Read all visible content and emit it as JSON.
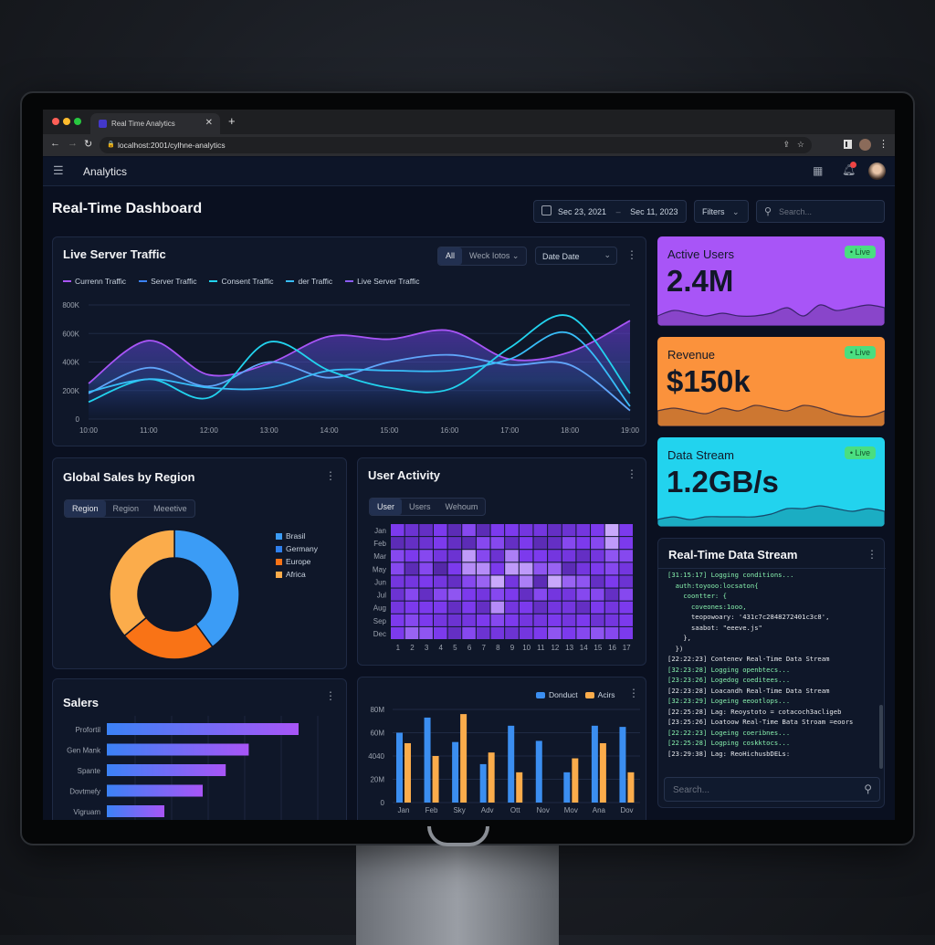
{
  "browser": {
    "tab_title": "Real Time Analytics",
    "url": "localhost:2001/cylhne-analytics"
  },
  "app": {
    "title": "Analytics",
    "notification_count": "1"
  },
  "page": {
    "title": "Real-Time Dashboard",
    "date_from": "Sec 23, 2021",
    "date_sep": "–",
    "date_to": "Sec 11, 2023",
    "filters_label": "Filters",
    "search_placeholder": "Search..."
  },
  "traffic": {
    "title": "Live Server Traffic",
    "seg_all": "All",
    "seg_week": "Weck Iotos",
    "date_select": "Date Date",
    "legend": [
      {
        "name": "Currenn Traffic",
        "color": "#a855f7"
      },
      {
        "name": "Server Traffic",
        "color": "#3b82f6"
      },
      {
        "name": "Consent Traffic",
        "color": "#22d3ee"
      },
      {
        "name": "der Traffic",
        "color": "#38bdf8"
      },
      {
        "name": "Live Server Traffic",
        "color": "#8b5cf6"
      }
    ]
  },
  "kpis": [
    {
      "label": "Active Users",
      "value": "2.4M",
      "badge": "Live",
      "color": "#a855f7",
      "spark": [
        3,
        5,
        4,
        3,
        4,
        3,
        3,
        4,
        6,
        3,
        7,
        5,
        6,
        7,
        6
      ]
    },
    {
      "label": "Revenue",
      "value": "$150k",
      "badge": "Live",
      "color": "#fb923c",
      "spark": [
        5,
        6,
        5,
        4,
        6,
        5,
        7,
        6,
        5,
        7,
        6,
        4,
        3,
        3,
        5
      ]
    },
    {
      "label": "Data Stream",
      "value": "1.2GB/s",
      "badge": "Live",
      "color": "#22d3ee",
      "spark": [
        2,
        3,
        2,
        3,
        3,
        3,
        3,
        4,
        6,
        6,
        7,
        6,
        5,
        6,
        5
      ]
    }
  ],
  "sales_region": {
    "title": "Global Sales by Region",
    "tabs": [
      "Region",
      "Region",
      "Meeetive"
    ]
  },
  "user_activity": {
    "title": "User Activity",
    "tabs": [
      "User",
      "Users",
      "Wehoum"
    ]
  },
  "stream": {
    "title": "Real-Time Data Stream",
    "search_placeholder": "Search...",
    "lines": [
      {
        "t": "[31:15:17] Logging conditions...",
        "c": "g"
      },
      {
        "t": "  auth:toyooo:locsaton{",
        "c": "g"
      },
      {
        "t": "    coontter: {",
        "c": "g"
      },
      {
        "t": "      coveones:1ooo,",
        "c": "g"
      },
      {
        "t": "      teopowoary: '431c7c2848272401c3c8',",
        "c": "w"
      },
      {
        "t": "      saabot: \"eeeve.js\"",
        "c": "w"
      },
      {
        "t": "    },",
        "c": "w"
      },
      {
        "t": "  })",
        "c": "w"
      },
      {
        "t": "[22:22:23] Contenev Real-Time Data Stream",
        "c": "w"
      },
      {
        "t": "[32:23:28] Logging openbtecs...",
        "c": "g"
      },
      {
        "t": "[23:23:26] Logedog coeditees...",
        "c": "g"
      },
      {
        "t": "[22:23:28] Loacandh Real-Time Data Stream",
        "c": "w"
      },
      {
        "t": "[32:23:29] Logeing eeootlops...",
        "c": "g"
      },
      {
        "t": "[22:25:28] Lag: Reoystoto = cotacoch3acligeb",
        "c": "w"
      },
      {
        "t": "[23:25:26] Loatoow Real-Time Bata Stroam =eoors",
        "c": "w"
      },
      {
        "t": "[22:22:23] Logeing coeribnes...",
        "c": "g"
      },
      {
        "t": "[22:25:28] Logping coskktocs...",
        "c": "g"
      },
      {
        "t": "[23:29:38] Lag: ReoHichusbDELs:",
        "c": "w"
      }
    ]
  },
  "salers": {
    "title": "Salers"
  },
  "chart_data": [
    {
      "type": "line",
      "title": "Live Server Traffic",
      "x": [
        "10:00",
        "11:00",
        "12:00",
        "13:00",
        "14:00",
        "15:00",
        "16:00",
        "17:00",
        "18:00",
        "19:00"
      ],
      "yticks": [
        "0",
        "200K",
        "400K",
        "600K",
        "800K"
      ],
      "ylim": [
        0,
        800
      ],
      "grid": true,
      "legend": "top-left",
      "series": [
        {
          "name": "Currenn Traffic",
          "color": "#a855f7",
          "fill": true,
          "values": [
            250,
            550,
            310,
            390,
            580,
            560,
            620,
            420,
            470,
            690
          ]
        },
        {
          "name": "Server Traffic",
          "color": "#60a5fa",
          "values": [
            180,
            360,
            230,
            400,
            290,
            400,
            450,
            380,
            380,
            60
          ]
        },
        {
          "name": "Consent Traffic",
          "color": "#22d3ee",
          "values": [
            120,
            280,
            150,
            540,
            340,
            220,
            210,
            500,
            720,
            180
          ]
        },
        {
          "name": "der Traffic",
          "color": "#38bdf8",
          "values": [
            190,
            280,
            220,
            220,
            340,
            340,
            340,
            420,
            600,
            90
          ]
        }
      ]
    },
    {
      "type": "pie",
      "title": "Global Sales by Region",
      "legend": "right",
      "labels": [
        "Brasil",
        "Germany",
        "Europe",
        "Africa"
      ],
      "values": [
        40,
        0,
        24,
        36
      ],
      "colors": [
        "#3b9cf6",
        "#2f80ed",
        "#f97316",
        "#fbac4b"
      ]
    },
    {
      "type": "heatmap",
      "title": "User Activity",
      "rows": [
        "Jan",
        "Feb",
        "Mar",
        "May",
        "Jun",
        "Jul",
        "Aug",
        "Sep",
        "Dec"
      ],
      "cols": [
        "1",
        "2",
        "3",
        "4",
        "5",
        "6",
        "7",
        "8",
        "9",
        "10",
        "11",
        "12",
        "13",
        "14",
        "15",
        "16",
        "17"
      ],
      "values": [
        [
          0.5,
          0.4,
          0.35,
          0.5,
          0.3,
          0.55,
          0.3,
          0.5,
          0.5,
          0.45,
          0.45,
          0.35,
          0.4,
          0.45,
          0.5,
          0.9,
          0.5
        ],
        [
          0.3,
          0.35,
          0.4,
          0.5,
          0.35,
          0.3,
          0.55,
          0.55,
          0.35,
          0.5,
          0.3,
          0.35,
          0.55,
          0.5,
          0.55,
          0.85,
          0.5
        ],
        [
          0.55,
          0.5,
          0.55,
          0.45,
          0.4,
          0.85,
          0.55,
          0.4,
          0.75,
          0.5,
          0.5,
          0.45,
          0.45,
          0.35,
          0.45,
          0.6,
          0.55
        ],
        [
          0.55,
          0.3,
          0.55,
          0.25,
          0.5,
          0.8,
          0.8,
          0.5,
          0.85,
          0.85,
          0.6,
          0.65,
          0.3,
          0.45,
          0.5,
          0.55,
          0.45
        ],
        [
          0.45,
          0.45,
          0.5,
          0.45,
          0.35,
          0.55,
          0.65,
          0.9,
          0.45,
          0.75,
          0.3,
          0.9,
          0.65,
          0.6,
          0.35,
          0.5,
          0.4
        ],
        [
          0.4,
          0.55,
          0.35,
          0.55,
          0.6,
          0.5,
          0.45,
          0.55,
          0.5,
          0.35,
          0.55,
          0.45,
          0.45,
          0.55,
          0.55,
          0.35,
          0.55
        ],
        [
          0.45,
          0.5,
          0.5,
          0.5,
          0.35,
          0.5,
          0.35,
          0.8,
          0.45,
          0.5,
          0.35,
          0.45,
          0.45,
          0.35,
          0.5,
          0.45,
          0.5
        ],
        [
          0.5,
          0.55,
          0.5,
          0.45,
          0.4,
          0.45,
          0.5,
          0.55,
          0.5,
          0.45,
          0.45,
          0.5,
          0.45,
          0.5,
          0.4,
          0.45,
          0.5
        ],
        [
          0.5,
          0.65,
          0.6,
          0.5,
          0.35,
          0.55,
          0.4,
          0.45,
          0.4,
          0.45,
          0.5,
          0.6,
          0.5,
          0.55,
          0.6,
          0.55,
          0.5
        ]
      ]
    },
    {
      "type": "bar",
      "orientation": "horizontal",
      "title": "Salers",
      "categories": [
        "Profortil",
        "Gen Mank",
        "Spante",
        "Dovtmefy",
        "Vigruam"
      ],
      "values": [
        100,
        74,
        62,
        50,
        30
      ]
    },
    {
      "type": "bar",
      "categories": [
        "Jan",
        "Feb",
        "Sky",
        "Adv",
        "Ott",
        "Nov",
        "Mov",
        "Ana",
        "Dov"
      ],
      "yticks": [
        "0",
        "20M",
        "4040",
        "60M",
        "80M"
      ],
      "ylim": [
        0,
        80
      ],
      "legend": "top-right",
      "series": [
        {
          "name": "Donduct",
          "color": "#3b8ef0",
          "values": [
            60,
            73,
            52,
            33,
            66,
            53,
            26,
            66,
            65
          ]
        },
        {
          "name": "Acirs",
          "color": "#fbac4b",
          "values": [
            51,
            40,
            76,
            43,
            26,
            0,
            38,
            51,
            26
          ]
        }
      ]
    }
  ]
}
